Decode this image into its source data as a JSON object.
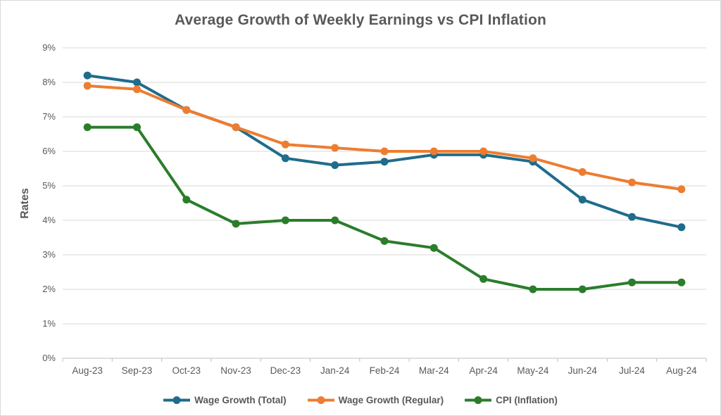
{
  "chart_data": {
    "type": "line",
    "title": "Average Growth of Weekly Earnings vs CPI Inflation",
    "xlabel": "",
    "ylabel": "Rates",
    "categories": [
      "Aug-23",
      "Sep-23",
      "Oct-23",
      "Nov-23",
      "Dec-23",
      "Jan-24",
      "Feb-24",
      "Mar-24",
      "Apr-24",
      "May-24",
      "Jun-24",
      "Jul-24",
      "Aug-24"
    ],
    "series": [
      {
        "name": "Wage Growth (Total)",
        "color": "#1F6C8C",
        "values": [
          8.2,
          8.0,
          7.2,
          6.7,
          5.8,
          5.6,
          5.7,
          5.9,
          5.9,
          5.7,
          4.6,
          4.1,
          3.8
        ]
      },
      {
        "name": "Wage Growth (Regular)",
        "color": "#ED7D31",
        "values": [
          7.9,
          7.8,
          7.2,
          6.7,
          6.2,
          6.1,
          6.0,
          6.0,
          6.0,
          5.8,
          5.4,
          5.1,
          4.9
        ]
      },
      {
        "name": "CPI (Inflation)",
        "color": "#2B7D2B",
        "values": [
          6.7,
          6.7,
          4.6,
          3.9,
          4.0,
          4.0,
          3.4,
          3.2,
          2.3,
          2.0,
          2.0,
          2.2,
          2.2
        ]
      }
    ],
    "ylim": [
      0,
      9
    ],
    "ytick_step": 1,
    "ytick_labels": [
      "0%",
      "1%",
      "2%",
      "3%",
      "4%",
      "5%",
      "6%",
      "7%",
      "8%",
      "9%"
    ],
    "grid": "horizontal",
    "legend_position": "bottom"
  },
  "colors": {
    "text": "#595959",
    "gridline": "#D9D9D9",
    "axis": "#BFBFBF",
    "background": "#FFFFFF",
    "border": "#D9D9D9"
  }
}
